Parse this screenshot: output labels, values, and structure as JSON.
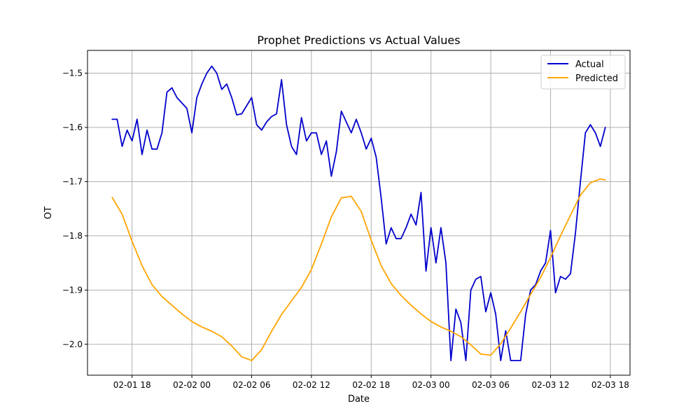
{
  "chart_data": {
    "type": "line",
    "title": "Prophet Predictions vs Actual Values",
    "xlabel": "Date",
    "ylabel": "OT",
    "ylim": [
      -2.057,
      -1.458
    ],
    "grid": true,
    "legend_position": "top-right",
    "x_tick_labels": [
      "02-01 18",
      "02-02 00",
      "02-02 06",
      "02-02 12",
      "02-02 18",
      "02-03 00",
      "02-03 06",
      "02-03 12",
      "02-03 18"
    ],
    "y_ticks": [
      -1.5,
      -1.6,
      -1.7,
      -1.8,
      -1.9,
      -2.0
    ],
    "y_tick_labels": [
      "−1.5",
      "−1.6",
      "−1.7",
      "−1.8",
      "−1.9",
      "−2.0"
    ],
    "series": [
      {
        "name": "Actual",
        "color": "#0000cc",
        "points": [
          [
            "02-01 16:00",
            -1.585
          ],
          [
            "02-01 16:30",
            -1.585
          ],
          [
            "02-01 17:00",
            -1.635
          ],
          [
            "02-01 17:30",
            -1.605
          ],
          [
            "02-01 18:00",
            -1.625
          ],
          [
            "02-01 18:30",
            -1.585
          ],
          [
            "02-01 19:00",
            -1.65
          ],
          [
            "02-01 19:30",
            -1.605
          ],
          [
            "02-01 20:00",
            -1.64
          ],
          [
            "02-01 20:30",
            -1.64
          ],
          [
            "02-01 21:00",
            -1.61
          ],
          [
            "02-01 21:30",
            -1.535
          ],
          [
            "02-01 22:00",
            -1.527
          ],
          [
            "02-01 22:30",
            -1.545
          ],
          [
            "02-01 23:00",
            -1.555
          ],
          [
            "02-01 23:30",
            -1.565
          ],
          [
            "02-02 00:00",
            -1.61
          ],
          [
            "02-02 00:30",
            -1.545
          ],
          [
            "02-02 01:00",
            -1.52
          ],
          [
            "02-02 01:30",
            -1.5
          ],
          [
            "02-02 02:00",
            -1.487
          ],
          [
            "02-02 02:30",
            -1.5
          ],
          [
            "02-02 03:00",
            -1.53
          ],
          [
            "02-02 03:30",
            -1.52
          ],
          [
            "02-02 04:00",
            -1.545
          ],
          [
            "02-02 04:30",
            -1.577
          ],
          [
            "02-02 05:00",
            -1.575
          ],
          [
            "02-02 05:30",
            -1.56
          ],
          [
            "02-02 06:00",
            -1.545
          ],
          [
            "02-02 06:30",
            -1.595
          ],
          [
            "02-02 07:00",
            -1.605
          ],
          [
            "02-02 07:30",
            -1.59
          ],
          [
            "02-02 08:00",
            -1.58
          ],
          [
            "02-02 08:30",
            -1.575
          ],
          [
            "02-02 09:00",
            -1.512
          ],
          [
            "02-02 09:30",
            -1.595
          ],
          [
            "02-02 10:00",
            -1.635
          ],
          [
            "02-02 10:30",
            -1.65
          ],
          [
            "02-02 11:00",
            -1.582
          ],
          [
            "02-02 11:30",
            -1.625
          ],
          [
            "02-02 12:00",
            -1.61
          ],
          [
            "02-02 12:30",
            -1.61
          ],
          [
            "02-02 13:00",
            -1.65
          ],
          [
            "02-02 13:30",
            -1.625
          ],
          [
            "02-02 14:00",
            -1.69
          ],
          [
            "02-02 14:30",
            -1.645
          ],
          [
            "02-02 15:00",
            -1.57
          ],
          [
            "02-02 15:30",
            -1.59
          ],
          [
            "02-02 16:00",
            -1.61
          ],
          [
            "02-02 16:30",
            -1.585
          ],
          [
            "02-02 17:00",
            -1.61
          ],
          [
            "02-02 17:30",
            -1.64
          ],
          [
            "02-02 18:00",
            -1.62
          ],
          [
            "02-02 18:30",
            -1.655
          ],
          [
            "02-02 19:00",
            -1.73
          ],
          [
            "02-02 19:30",
            -1.815
          ],
          [
            "02-02 20:00",
            -1.785
          ],
          [
            "02-02 20:30",
            -1.805
          ],
          [
            "02-02 21:00",
            -1.805
          ],
          [
            "02-02 21:30",
            -1.785
          ],
          [
            "02-02 22:00",
            -1.76
          ],
          [
            "02-02 22:30",
            -1.78
          ],
          [
            "02-02 23:00",
            -1.72
          ],
          [
            "02-02 23:30",
            -1.865
          ],
          [
            "02-03 00:00",
            -1.785
          ],
          [
            "02-03 00:30",
            -1.85
          ],
          [
            "02-03 01:00",
            -1.785
          ],
          [
            "02-03 01:30",
            -1.85
          ],
          [
            "02-03 02:00",
            -2.03
          ],
          [
            "02-03 02:30",
            -1.935
          ],
          [
            "02-03 03:00",
            -1.96
          ],
          [
            "02-03 03:30",
            -2.03
          ],
          [
            "02-03 04:00",
            -1.9
          ],
          [
            "02-03 04:30",
            -1.88
          ],
          [
            "02-03 05:00",
            -1.875
          ],
          [
            "02-03 05:30",
            -1.94
          ],
          [
            "02-03 06:00",
            -1.905
          ],
          [
            "02-03 06:30",
            -1.945
          ],
          [
            "02-03 07:00",
            -2.03
          ],
          [
            "02-03 07:30",
            -1.975
          ],
          [
            "02-03 08:00",
            -2.03
          ],
          [
            "02-03 08:30",
            -2.03
          ],
          [
            "02-03 09:00",
            -2.03
          ],
          [
            "02-03 09:30",
            -1.945
          ],
          [
            "02-03 10:00",
            -1.9
          ],
          [
            "02-03 10:30",
            -1.89
          ],
          [
            "02-03 11:00",
            -1.865
          ],
          [
            "02-03 11:30",
            -1.85
          ],
          [
            "02-03 12:00",
            -1.79
          ],
          [
            "02-03 12:30",
            -1.905
          ],
          [
            "02-03 13:00",
            -1.875
          ],
          [
            "02-03 13:30",
            -1.88
          ],
          [
            "02-03 14:00",
            -1.87
          ],
          [
            "02-03 14:30",
            -1.795
          ],
          [
            "02-03 15:00",
            -1.7
          ],
          [
            "02-03 15:30",
            -1.61
          ],
          [
            "02-03 16:00",
            -1.595
          ],
          [
            "02-03 16:30",
            -1.61
          ],
          [
            "02-03 17:00",
            -1.635
          ],
          [
            "02-03 17:30",
            -1.6
          ]
        ]
      },
      {
        "name": "Predicted",
        "color": "#ffa500",
        "points": [
          [
            "02-01 16:00",
            -1.729
          ],
          [
            "02-01 17:00",
            -1.76
          ],
          [
            "02-01 18:00",
            -1.81
          ],
          [
            "02-01 19:00",
            -1.855
          ],
          [
            "02-01 20:00",
            -1.89
          ],
          [
            "02-01 21:00",
            -1.912
          ],
          [
            "02-01 22:00",
            -1.928
          ],
          [
            "02-01 23:00",
            -1.944
          ],
          [
            "02-02 00:00",
            -1.958
          ],
          [
            "02-02 01:00",
            -1.968
          ],
          [
            "02-02 02:00",
            -1.976
          ],
          [
            "02-02 03:00",
            -1.986
          ],
          [
            "02-02 04:00",
            -2.003
          ],
          [
            "02-02 05:00",
            -2.023
          ],
          [
            "02-02 06:00",
            -2.03
          ],
          [
            "02-02 07:00",
            -2.01
          ],
          [
            "02-02 08:00",
            -1.976
          ],
          [
            "02-02 09:00",
            -1.945
          ],
          [
            "02-02 10:00",
            -1.92
          ],
          [
            "02-02 11:00",
            -1.895
          ],
          [
            "02-02 12:00",
            -1.862
          ],
          [
            "02-02 13:00",
            -1.815
          ],
          [
            "02-02 14:00",
            -1.765
          ],
          [
            "02-02 15:00",
            -1.73
          ],
          [
            "02-02 16:00",
            -1.727
          ],
          [
            "02-02 17:00",
            -1.755
          ],
          [
            "02-02 18:00",
            -1.808
          ],
          [
            "02-02 19:00",
            -1.855
          ],
          [
            "02-02 20:00",
            -1.888
          ],
          [
            "02-02 21:00",
            -1.91
          ],
          [
            "02-02 22:00",
            -1.928
          ],
          [
            "02-02 23:00",
            -1.944
          ],
          [
            "02-03 00:00",
            -1.958
          ],
          [
            "02-03 01:00",
            -1.968
          ],
          [
            "02-03 02:00",
            -1.976
          ],
          [
            "02-03 03:00",
            -1.986
          ],
          [
            "02-03 04:00",
            -2.001
          ],
          [
            "02-03 05:00",
            -2.018
          ],
          [
            "02-03 06:00",
            -2.02
          ],
          [
            "02-03 07:00",
            -1.999
          ],
          [
            "02-03 08:00",
            -1.97
          ],
          [
            "02-03 09:00",
            -1.94
          ],
          [
            "02-03 10:00",
            -1.908
          ],
          [
            "02-03 11:00",
            -1.877
          ],
          [
            "02-03 12:00",
            -1.84
          ],
          [
            "02-03 13:00",
            -1.8
          ],
          [
            "02-03 14:00",
            -1.762
          ],
          [
            "02-03 15:00",
            -1.725
          ],
          [
            "02-03 16:00",
            -1.702
          ],
          [
            "02-03 17:00",
            -1.695
          ],
          [
            "02-03 17:30",
            -1.697
          ]
        ]
      }
    ]
  }
}
